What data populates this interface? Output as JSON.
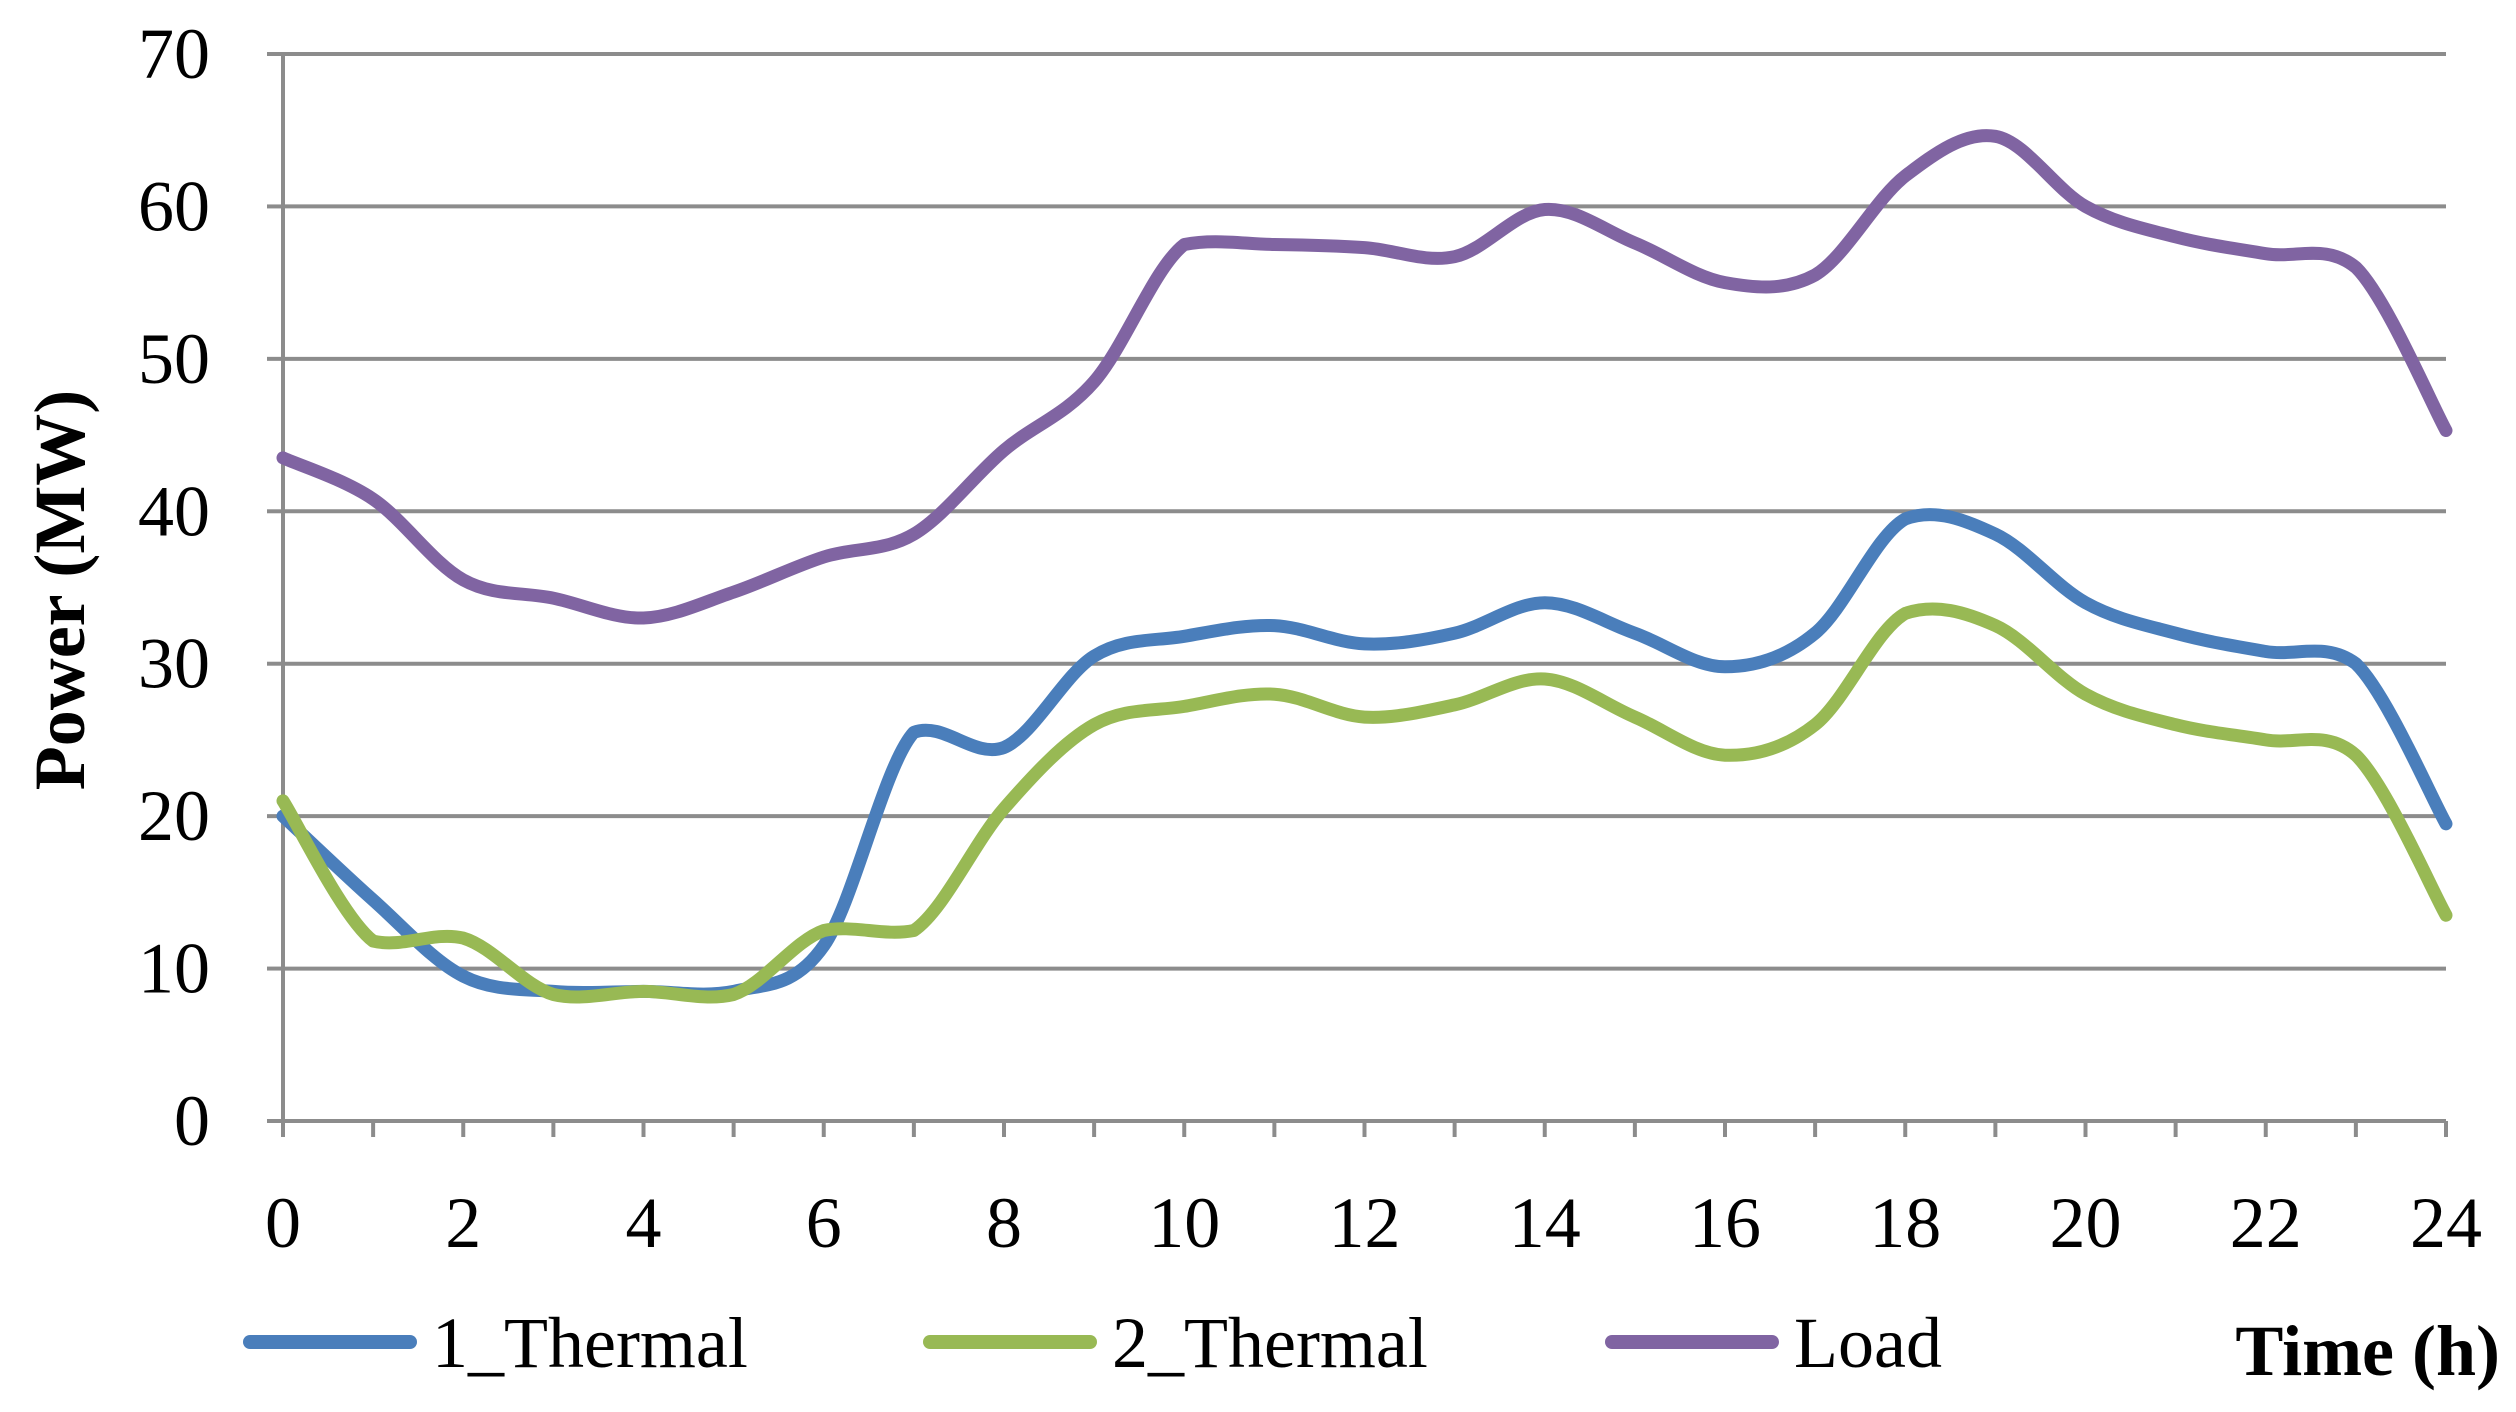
{
  "chart_data": {
    "type": "line",
    "title": "",
    "xlabel": "Time (h)",
    "ylabel": "Power (MW)",
    "xlim": [
      0,
      24
    ],
    "ylim": [
      0,
      70
    ],
    "grid": true,
    "legend_position": "bottom",
    "x_ticks": [
      0,
      2,
      4,
      6,
      8,
      10,
      12,
      14,
      16,
      18,
      20,
      22,
      24
    ],
    "y_ticks": [
      0,
      10,
      20,
      30,
      40,
      50,
      60,
      70
    ],
    "x": [
      0,
      1,
      2,
      3,
      4,
      5,
      6,
      7,
      8,
      9,
      10,
      11,
      12,
      13,
      14,
      15,
      16,
      17,
      18,
      19,
      20,
      21,
      22,
      23,
      24
    ],
    "series": [
      {
        "name": "1_Thermal",
        "color": "#4a7ebb",
        "values": [
          20,
          14.5,
          9.5,
          8.5,
          8.5,
          8.5,
          11.5,
          25.5,
          24.5,
          30.5,
          31.8,
          32.5,
          31.3,
          32,
          34,
          32,
          29.8,
          32,
          39.5,
          38.5,
          34,
          32,
          30.8,
          30,
          19.5
        ]
      },
      {
        "name": "2_Thermal",
        "color": "#98b954",
        "values": [
          21,
          11.8,
          12,
          8.3,
          8.5,
          8.3,
          12.5,
          12.5,
          20.5,
          26,
          27.2,
          28,
          26.5,
          27.3,
          29,
          26.5,
          24,
          26,
          33.3,
          32.5,
          28,
          26,
          25,
          24,
          13.5
        ]
      },
      {
        "name": "Load",
        "color": "#8064a2",
        "values": [
          43.5,
          40.8,
          35.5,
          34.3,
          33,
          34.7,
          37,
          38.5,
          44,
          48.5,
          57.5,
          57.5,
          57.3,
          56.7,
          59.8,
          57.6,
          55,
          55.5,
          62,
          64.6,
          60,
          58,
          56.9,
          56,
          45.3
        ]
      }
    ]
  }
}
